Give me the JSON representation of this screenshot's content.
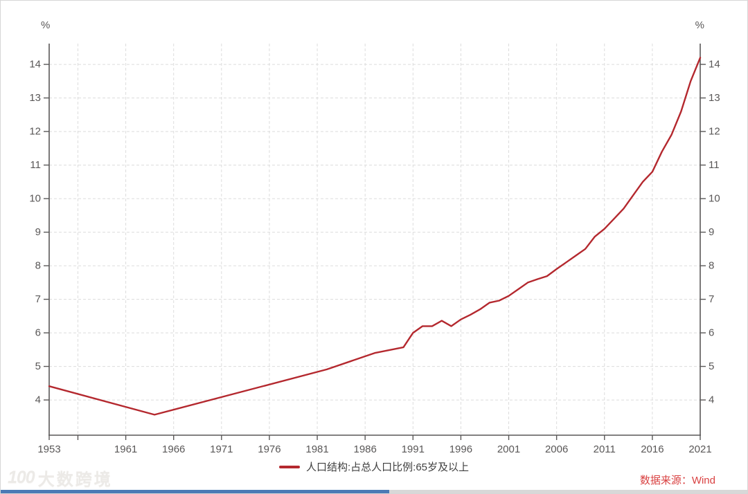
{
  "header": {
    "unit_left": "%",
    "unit_right": "%"
  },
  "legend": {
    "label": "人口结构:占总人口比例:65岁及以上"
  },
  "footer": {
    "source": "数据来源：Wind",
    "watermark_logo": "100",
    "watermark_text": "大数跨境"
  },
  "colors": {
    "line": "#b4282e",
    "axis": "#595757",
    "grid": "#dcdcdc",
    "tick_label": "#595757",
    "legend_text": "#3f3f3f",
    "source_text": "#d94141",
    "bar_blue": "#4b7ab5",
    "bar_gray": "#d8d8d8"
  },
  "chart_data": {
    "type": "line",
    "title": "",
    "ylabel_left": "%",
    "ylabel_right": "%",
    "grid": "dashed",
    "legend_position": "bottom-center",
    "x_range": [
      1953,
      2021
    ],
    "y_range": [
      2.95,
      14.62
    ],
    "y_ticks": [
      4,
      5,
      6,
      7,
      8,
      9,
      10,
      11,
      12,
      13,
      14
    ],
    "x_ticks": [
      1953,
      1956,
      1961,
      1966,
      1971,
      1976,
      1981,
      1986,
      1991,
      1996,
      2001,
      2006,
      2011,
      2016,
      2021
    ],
    "x_tick_labels": [
      1953,
      1961,
      1966,
      1971,
      1976,
      1981,
      1986,
      1991,
      1996,
      2001,
      2006,
      2011,
      2016,
      2021
    ],
    "x_gridlines": [
      1956,
      1961,
      1966,
      1971,
      1976,
      1981,
      1986,
      1991,
      1996,
      2001,
      2006,
      2011,
      2016
    ],
    "series": [
      {
        "name": "人口结构:占总人口比例:65岁及以上",
        "color": "#b4282e",
        "points": [
          [
            1953,
            4.41
          ],
          [
            1964,
            3.56
          ],
          [
            1982,
            4.91
          ],
          [
            1987,
            5.4
          ],
          [
            1990,
            5.57
          ],
          [
            1991,
            6.0
          ],
          [
            1992,
            6.2
          ],
          [
            1993,
            6.2
          ],
          [
            1994,
            6.36
          ],
          [
            1995,
            6.2
          ],
          [
            1996,
            6.4
          ],
          [
            1997,
            6.54
          ],
          [
            1998,
            6.7
          ],
          [
            1999,
            6.9
          ],
          [
            2000,
            6.96
          ],
          [
            2001,
            7.1
          ],
          [
            2002,
            7.3
          ],
          [
            2003,
            7.5
          ],
          [
            2004,
            7.6
          ],
          [
            2005,
            7.69
          ],
          [
            2006,
            7.9
          ],
          [
            2007,
            8.1
          ],
          [
            2008,
            8.3
          ],
          [
            2009,
            8.5
          ],
          [
            2010,
            8.87
          ],
          [
            2011,
            9.1
          ],
          [
            2012,
            9.4
          ],
          [
            2013,
            9.7
          ],
          [
            2014,
            10.1
          ],
          [
            2015,
            10.5
          ],
          [
            2016,
            10.8
          ],
          [
            2017,
            11.4
          ],
          [
            2018,
            11.9
          ],
          [
            2019,
            12.6
          ],
          [
            2020,
            13.5
          ],
          [
            2021,
            14.2
          ]
        ]
      }
    ]
  }
}
